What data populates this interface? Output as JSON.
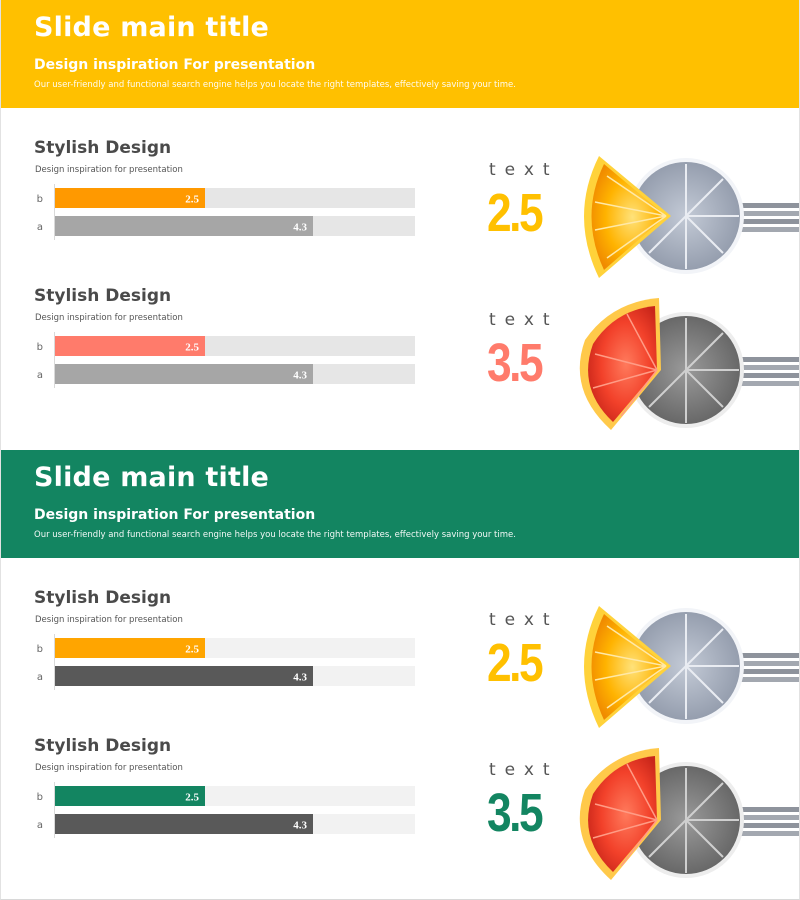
{
  "colors": {
    "yellow": "#FFC000",
    "orange": "#FF9900",
    "green": "#138561",
    "salmon": "#FF7B6B",
    "gray_bar": "#A6A6A6",
    "dark_bar": "#595959",
    "track_light": "#E6E6E6",
    "track_pale": "#F2F2F2"
  },
  "slides": [
    {
      "header": {
        "title": "Slide main title",
        "subtitle": "Design inspiration For presentation",
        "description": "Our user-friendly and functional search engine helps you locate the right templates, effectively saving your time."
      },
      "panels": [
        {
          "title": "Stylish Design",
          "subtitle": "Design inspiration for presentation",
          "stat_label": "text",
          "stat_value": "2.5",
          "stat_color": "#FFC000",
          "art": "orange-slice-fork"
        },
        {
          "title": "Stylish Design",
          "subtitle": "Design inspiration for presentation",
          "stat_label": "text",
          "stat_value": "3.5",
          "stat_color": "#FF7B6B",
          "art": "grapefruit-slice-fork"
        }
      ]
    },
    {
      "header": {
        "title": "Slide main title",
        "subtitle": "Design inspiration For presentation",
        "description": "Our user-friendly and functional search engine helps you locate the right templates, effectively saving your time."
      },
      "panels": [
        {
          "title": "Stylish Design",
          "subtitle": "Design inspiration for presentation",
          "stat_label": "text",
          "stat_value": "2.5",
          "stat_color": "#FFC000",
          "art": "orange-slice-fork"
        },
        {
          "title": "Stylish Design",
          "subtitle": "Design inspiration for presentation",
          "stat_label": "text",
          "stat_value": "3.5",
          "stat_color": "#138561",
          "art": "grapefruit-slice-fork"
        }
      ]
    }
  ],
  "chart_data": [
    {
      "type": "bar",
      "orientation": "horizontal",
      "title": "Stylish Design",
      "subtitle": "Design inspiration for presentation",
      "categories": [
        "b",
        "a"
      ],
      "values": [
        2.5,
        4.3
      ],
      "xlim": [
        0,
        6
      ],
      "bar_colors": [
        "#FF9900",
        "#A6A6A6"
      ],
      "track_color": "#E6E6E6",
      "grid": false
    },
    {
      "type": "bar",
      "orientation": "horizontal",
      "title": "Stylish Design",
      "subtitle": "Design inspiration for presentation",
      "categories": [
        "b",
        "a"
      ],
      "values": [
        2.5,
        4.3
      ],
      "xlim": [
        0,
        6
      ],
      "bar_colors": [
        "#FF7B6B",
        "#A6A6A6"
      ],
      "track_color": "#E6E6E6",
      "grid": false
    },
    {
      "type": "bar",
      "orientation": "horizontal",
      "title": "Stylish Design",
      "subtitle": "Design inspiration for presentation",
      "categories": [
        "b",
        "a"
      ],
      "values": [
        2.5,
        4.3
      ],
      "xlim": [
        0,
        6
      ],
      "bar_colors": [
        "#FFA500",
        "#595959"
      ],
      "track_color": "#F2F2F2",
      "grid": false
    },
    {
      "type": "bar",
      "orientation": "horizontal",
      "title": "Stylish Design",
      "subtitle": "Design inspiration for presentation",
      "categories": [
        "b",
        "a"
      ],
      "values": [
        2.5,
        4.3
      ],
      "xlim": [
        0,
        6
      ],
      "bar_colors": [
        "#138561",
        "#595959"
      ],
      "track_color": "#F2F2F2",
      "grid": false
    }
  ]
}
